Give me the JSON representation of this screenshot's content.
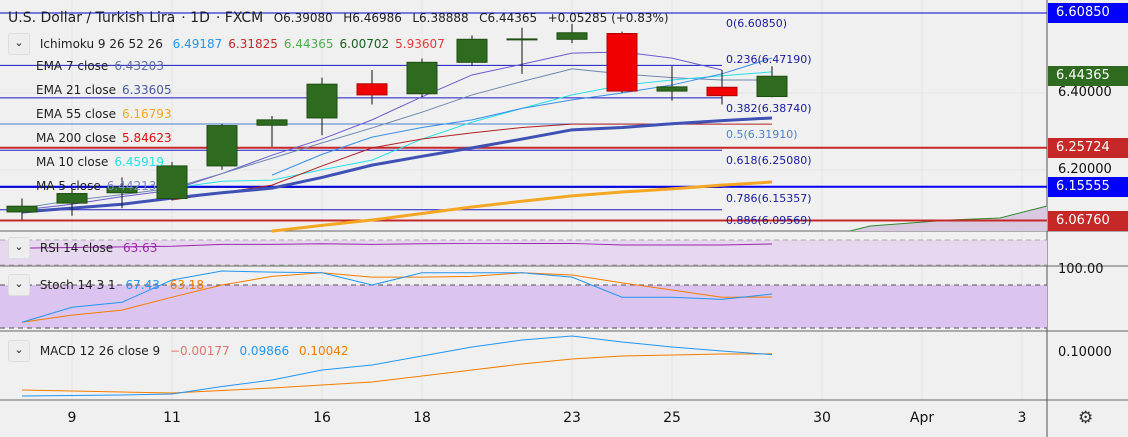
{
  "header": {
    "symbol": "U.S. Dollar / Turkish Lira",
    "interval": "1D",
    "exchange": "FXCM",
    "open": "O6.39080",
    "high": "H6.46986",
    "low": "L6.38888",
    "close": "C6.44365",
    "change": "+0.05285 (+0.83%)"
  },
  "indicators": {
    "ichimoku": {
      "label": "Ichimoku 9 26 52 26",
      "values": [
        "6.49187",
        "6.31825",
        "6.44365",
        "6.00702",
        "5.93607"
      ],
      "colors": [
        "#2196f3",
        "#c62828",
        "#4caf50",
        "#1b5e20",
        "#e53935"
      ]
    },
    "ma_list": [
      {
        "label": "EMA 7 close",
        "value": "6.43203",
        "color": "#5b6ea8"
      },
      {
        "label": "EMA 21 close",
        "value": "6.33605",
        "color": "#4a5aa0"
      },
      {
        "label": "EMA 55 close",
        "value": "6.16793",
        "color": "#f5a623"
      },
      {
        "label": "MA 200 close",
        "value": "5.84623",
        "color": "#e01010"
      },
      {
        "label": "MA 10 close",
        "value": "6.45919",
        "color": "#28e0e8"
      },
      {
        "label": "MA 5 close",
        "value": "6.44213",
        "color": "#7c88c0"
      }
    ],
    "rsi": {
      "label": "RSI 14 close",
      "value": "63.63",
      "color": "#9c27b0"
    },
    "stoch": {
      "label": "Stoch 14 3 1",
      "k": "67.43",
      "d": "63.18",
      "k_color": "#2196f3",
      "d_color": "#f57c00"
    },
    "macd": {
      "label": "MACD 12 26 close 9",
      "hist": "−0.00177",
      "macd": "0.09866",
      "signal": "0.10042",
      "hist_color": "#e57373",
      "macd_color": "#2196f3",
      "signal_color": "#f57c00"
    }
  },
  "fib_levels": [
    {
      "label": "0(6.60850)",
      "price": 6.6085
    },
    {
      "label": "0.236(6.47190)",
      "price": 6.4719
    },
    {
      "label": "0.382(6.38740)",
      "price": 6.3874
    },
    {
      "label": "0.5(6.31910)",
      "price": 6.3191
    },
    {
      "label": "0.618(6.25080)",
      "price": 6.2508
    },
    {
      "label": "0.786(6.15357)",
      "price": 6.15357
    },
    {
      "label": "0.886(6.09569)",
      "price": 6.09569
    }
  ],
  "price_axis": {
    "ticks": [
      {
        "label": "6.40000",
        "price": 6.4
      },
      {
        "label": "6.20000",
        "price": 6.2
      }
    ],
    "labels": [
      {
        "label": "6.60850",
        "price": 6.6085,
        "color": "#0000ff"
      },
      {
        "label": "6.44365",
        "price": 6.44365,
        "color": "#2e6b1e"
      },
      {
        "label": "6.25724",
        "price": 6.25724,
        "color": "#c62828"
      },
      {
        "label": "6.15555",
        "price": 6.15555,
        "color": "#0000ff"
      },
      {
        "label": "6.06760",
        "price": 6.0676,
        "color": "#c62828"
      }
    ],
    "stoch_tick": "100.00",
    "macd_tick": "0.10000"
  },
  "x_axis": {
    "ticks": [
      {
        "label": "9",
        "i": 1
      },
      {
        "label": "11",
        "i": 3
      },
      {
        "label": "16",
        "i": 6
      },
      {
        "label": "18",
        "i": 8
      },
      {
        "label": "23",
        "i": 11
      },
      {
        "label": "25",
        "i": 13
      },
      {
        "label": "30",
        "i": 16
      },
      {
        "label": "Apr",
        "i": 18
      },
      {
        "label": "3",
        "i": 20
      }
    ],
    "settings_icon": "gear-icon"
  },
  "chart_data": {
    "type": "candlestick",
    "ohlc": [
      [
        6.09,
        6.125,
        6.07,
        6.105
      ],
      [
        6.113,
        6.15,
        6.08,
        6.138
      ],
      [
        6.14,
        6.18,
        6.1,
        6.155
      ],
      [
        6.125,
        6.22,
        6.12,
        6.21
      ],
      [
        6.21,
        6.32,
        6.2,
        6.315
      ],
      [
        6.316,
        6.34,
        6.26,
        6.33
      ],
      [
        6.335,
        6.44,
        6.29,
        6.423
      ],
      [
        6.424,
        6.46,
        6.37,
        6.395
      ],
      [
        6.398,
        6.49,
        6.39,
        6.48
      ],
      [
        6.48,
        6.55,
        6.47,
        6.54
      ],
      [
        6.54,
        6.57,
        6.45,
        6.541
      ],
      [
        6.54,
        6.58,
        6.53,
        6.557
      ],
      [
        6.555,
        6.56,
        6.4,
        6.405
      ],
      [
        6.405,
        6.47,
        6.38,
        6.416
      ],
      [
        6.415,
        6.46,
        6.37,
        6.393
      ],
      [
        6.3908,
        6.46986,
        6.38888,
        6.44365
      ]
    ],
    "lines": [
      {
        "color": "#6a5acd",
        "w": 1,
        "values": [
          6.095,
          6.11,
          6.13,
          6.147,
          6.19,
          6.238,
          6.28,
          6.33,
          6.39,
          6.447,
          6.475,
          6.504,
          6.507,
          6.491,
          6.46,
          null
        ]
      },
      {
        "color": "#6f86b0",
        "w": 1,
        "values": [
          6.1,
          6.12,
          6.135,
          6.152,
          6.19,
          6.23,
          6.27,
          6.309,
          6.35,
          6.395,
          6.43,
          6.463,
          6.45,
          6.44,
          6.434,
          6.434
        ]
      },
      {
        "color": "#28e0e8",
        "w": 1,
        "values": [
          null,
          null,
          null,
          6.152,
          6.17,
          6.173,
          6.2,
          6.225,
          6.28,
          6.324,
          6.36,
          6.395,
          6.42,
          6.434,
          6.445,
          6.455
        ]
      },
      {
        "color": "#3a8ee6",
        "w": 1,
        "values": [
          null,
          null,
          null,
          null,
          null,
          6.186,
          6.24,
          6.285,
          6.31,
          6.33,
          6.36,
          6.382,
          6.4,
          6.421,
          6.45,
          6.491
        ]
      },
      {
        "color": "#b22222",
        "w": 1,
        "values": [
          null,
          null,
          null,
          6.121,
          6.14,
          6.16,
          6.21,
          6.257,
          6.28,
          6.296,
          6.31,
          6.319,
          6.319,
          6.319,
          6.319,
          6.319
        ]
      },
      {
        "color": "#3f51b5",
        "w": 3,
        "values": [
          6.09,
          6.1,
          6.11,
          6.126,
          6.14,
          6.152,
          6.18,
          6.212,
          6.235,
          6.257,
          6.28,
          6.304,
          6.31,
          6.32,
          6.328,
          6.335
        ]
      },
      {
        "color": "#f5a623",
        "w": 3,
        "values": [
          null,
          null,
          null,
          null,
          null,
          6.04,
          6.055,
          6.069,
          6.086,
          6.103,
          6.118,
          6.132,
          6.142,
          6.15,
          6.16,
          6.168
        ]
      }
    ],
    "rsi": [
      57,
      58,
      59,
      60,
      63,
      63,
      64,
      63,
      64,
      64.5,
      64.5,
      64.5,
      62,
      62,
      62,
      63.63
    ],
    "stoch_k": [
      28,
      49,
      56,
      87,
      99.5,
      98,
      97,
      80,
      97,
      97,
      97,
      91,
      63,
      63,
      60,
      67.43
    ],
    "stoch_d": [
      28,
      38,
      45,
      63,
      80,
      92,
      97,
      91,
      91,
      92,
      97,
      94,
      83,
      73,
      63,
      63.18
    ],
    "macd": [
      0.016,
      0.017,
      0.018,
      0.02,
      0.035,
      0.048,
      0.068,
      0.078,
      0.096,
      0.114,
      0.128,
      0.136,
      0.124,
      0.114,
      0.106,
      0.09866
    ],
    "signal": [
      0.028,
      0.026,
      0.024,
      0.022,
      0.027,
      0.032,
      0.038,
      0.044,
      0.056,
      0.068,
      0.08,
      0.09,
      0.096,
      0.098,
      0.1,
      0.10042
    ]
  }
}
